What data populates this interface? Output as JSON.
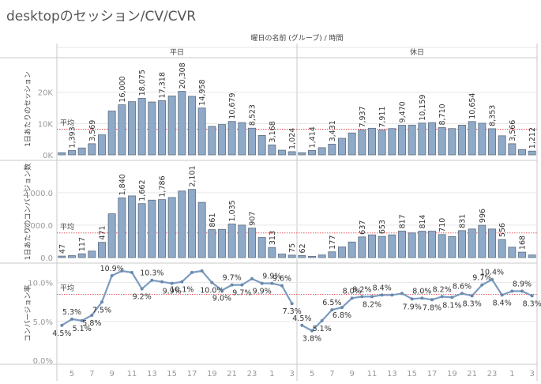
{
  "title": "desktopのセッション/CV/CVR",
  "chart_data": {
    "type": "bar",
    "title": "desktopのセッション/CV/CVR",
    "column_header": "曜日の名前 (グループ) / 時間",
    "groups": [
      "平日",
      "休日"
    ],
    "hours": [
      4,
      5,
      6,
      7,
      8,
      9,
      10,
      11,
      12,
      13,
      14,
      15,
      16,
      17,
      18,
      19,
      20,
      21,
      22,
      23,
      0,
      1,
      2,
      3
    ],
    "x_tick_labels": [
      "5",
      "7",
      "9",
      "11",
      "13",
      "15",
      "17",
      "19",
      "21",
      "23",
      "1",
      "3"
    ],
    "average_label": "平均",
    "accent_color": "#8fa9c8",
    "line_color": "#7b9bc0",
    "average_line_color": "#e0474c",
    "panels": [
      {
        "id": "sessions",
        "type": "bar",
        "ylabel": "1日あたりのセッション",
        "y_ticks": [
          "0K",
          "10K",
          "20K"
        ],
        "y_tick_values": [
          0,
          10000,
          20000
        ],
        "ylim": [
          0,
          27000
        ],
        "average": 8200,
        "series": [
          {
            "name": "平日",
            "values": [
              700,
              1393,
              2200,
              3569,
              6400,
              14000,
              16000,
              17000,
              18075,
              16900,
              17318,
              18800,
              20308,
              18700,
              14958,
              9100,
              9700,
              10679,
              10300,
              8523,
              6200,
              3168,
              1500,
              1024
            ],
            "labels": [
              null,
              "1,393",
              null,
              "3,569",
              null,
              null,
              "16,000",
              null,
              "18,075",
              null,
              "17,318",
              null,
              "20,308",
              null,
              "14,958",
              null,
              null,
              "10,679",
              null,
              "8,523",
              null,
              "3,168",
              null,
              "1,024"
            ]
          },
          {
            "name": "休日",
            "values": [
              700,
              1414,
              2300,
              3431,
              5300,
              7000,
              7937,
              8500,
              7911,
              8400,
              9470,
              9500,
              10159,
              10300,
              8710,
              8400,
              9500,
              10654,
              10100,
              8353,
              6100,
              3566,
              1700,
              1212
            ],
            "labels": [
              null,
              "1,414",
              null,
              "3,431",
              null,
              null,
              "7,937",
              null,
              "7,911",
              null,
              "9,470",
              null,
              "10,159",
              null,
              "8,710",
              null,
              null,
              "10,654",
              null,
              "8,353",
              null,
              "3,566",
              null,
              "1,212"
            ]
          }
        ]
      },
      {
        "id": "conversions",
        "type": "bar",
        "ylabel": "1日あたりのコンバージョン数",
        "y_ticks": [
          "0.0",
          "1,000.0",
          "2,000.0"
        ],
        "y_tick_values": [
          0,
          1000,
          2000
        ],
        "ylim": [
          0,
          2750
        ],
        "average": 760,
        "series": [
          {
            "name": "平日",
            "values": [
              47,
              60,
              117,
              200,
              471,
              1350,
              1840,
              1900,
              1662,
              1770,
              1786,
              1850,
              2050,
              2101,
              1700,
              861,
              870,
              1035,
              1000,
              907,
              620,
              313,
              110,
              75
            ],
            "labels": [
              "47",
              null,
              "117",
              null,
              "471",
              null,
              "1,840",
              null,
              "1,662",
              null,
              "1,786",
              null,
              null,
              "2,101",
              null,
              "861",
              null,
              "1,035",
              null,
              "907",
              null,
              "313",
              null,
              "75"
            ]
          },
          {
            "name": "休日",
            "values": [
              62,
              40,
              80,
              177,
              330,
              480,
              637,
              700,
              653,
              700,
              817,
              760,
              814,
              814,
              710,
              650,
              831,
              880,
              996,
              880,
              556,
              320,
              168,
              80
            ],
            "labels": [
              "62",
              null,
              null,
              "177",
              null,
              null,
              "637",
              null,
              "653",
              null,
              "817",
              null,
              "814",
              null,
              "710",
              null,
              "831",
              null,
              "996",
              null,
              "556",
              null,
              "168",
              null
            ]
          }
        ]
      },
      {
        "id": "cvr",
        "type": "line",
        "ylabel": "コンバージョン率",
        "y_ticks": [
          "0.0%",
          "5.0%",
          "10.0%"
        ],
        "y_tick_values": [
          0,
          5,
          10
        ],
        "ylim": [
          0,
          12
        ],
        "average": 8.5,
        "series": [
          {
            "name": "平日",
            "values": [
              4.5,
              5.3,
              5.1,
              5.8,
              7.5,
              10.9,
              11.5,
              11.3,
              9.2,
              10.3,
              10.1,
              9.9,
              10.1,
              11.3,
              11.5,
              10.0,
              9.0,
              9.7,
              9.7,
              10.5,
              9.9,
              9.9,
              9.6,
              7.3
            ],
            "labels": [
              "4.5%",
              "5.3%",
              "5.1%",
              "5.8%",
              "7.5%",
              "10.9%",
              null,
              null,
              "9.2%",
              "10.3%",
              null,
              "9.9%",
              "10.1%",
              null,
              null,
              "10.0%",
              "9.0%",
              "9.7%",
              "9.7%",
              null,
              "9.9%",
              "9.9%",
              "9.6%",
              "7.3%"
            ]
          },
          {
            "name": "休日",
            "values": [
              4.5,
              3.8,
              5.1,
              6.5,
              6.8,
              8.0,
              8.2,
              8.2,
              8.4,
              8.4,
              8.6,
              7.9,
              8.0,
              7.8,
              8.2,
              8.1,
              8.6,
              8.3,
              9.7,
              10.4,
              8.4,
              8.9,
              8.9,
              8.3
            ],
            "labels": [
              "4.5%",
              "3.8%",
              "5.1%",
              "6.5%",
              "6.8%",
              "8.0%",
              "8.2%",
              "8.2%",
              "8.4%",
              null,
              null,
              "7.9%",
              "8.0%",
              "7.8%",
              "8.2%",
              "8.1%",
              "8.6%",
              "8.3%",
              "9.7%",
              "10.4%",
              "8.4%",
              null,
              "8.9%",
              "8.3%"
            ]
          }
        ]
      }
    ]
  }
}
